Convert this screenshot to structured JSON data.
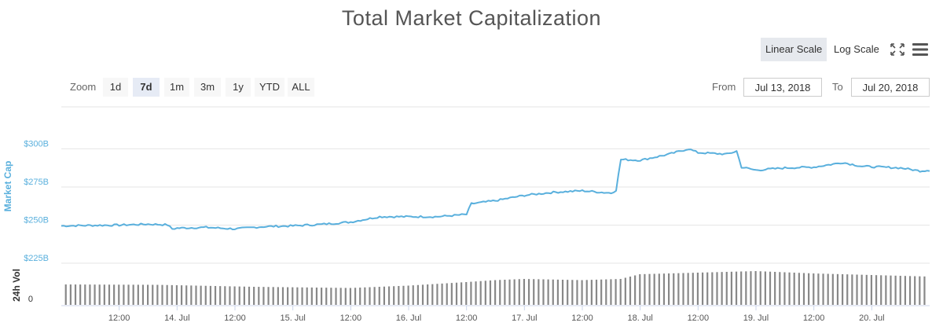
{
  "title": "Total Market Capitalization",
  "scale": {
    "linear_label": "Linear Scale",
    "log_label": "Log Scale",
    "active": "linear"
  },
  "icons": {
    "fullscreen": "fullscreen-icon",
    "menu": "hamburger-menu-icon"
  },
  "zoom": {
    "label": "Zoom",
    "options": [
      "1d",
      "7d",
      "1m",
      "3m",
      "1y",
      "YTD",
      "ALL"
    ],
    "active": "7d"
  },
  "range": {
    "from_label": "From",
    "from_value": "Jul 13, 2018",
    "to_label": "To",
    "to_value": "Jul 20, 2018"
  },
  "colors": {
    "line": "#5ab0dd",
    "volume": "#888888",
    "grid": "#e6e6e6",
    "axis_label": "#5ab0dd"
  },
  "chart_data": {
    "type": "line",
    "title": "Total Market Capitalization",
    "ylabel": "Market Cap",
    "y2label": "24h Vol",
    "y_ticks": [
      "$300B",
      "$275B",
      "$250B",
      "$225B"
    ],
    "y_tick_values": [
      300,
      275,
      250,
      225
    ],
    "ylim": [
      225,
      310
    ],
    "volume_tick": "0",
    "x_ticks": [
      "12:00",
      "14. Jul",
      "12:00",
      "15. Jul",
      "12:00",
      "16. Jul",
      "12:00",
      "17. Jul",
      "12:00",
      "18. Jul",
      "12:00",
      "19. Jul",
      "12:00",
      "20. Jul"
    ],
    "x_tick_hours": [
      12,
      24,
      36,
      48,
      60,
      72,
      84,
      96,
      108,
      120,
      132,
      144,
      156,
      168
    ],
    "x_range_hours": [
      0,
      180
    ],
    "x_unit": "hours after Jul 13, 2018 00:00",
    "series": [
      {
        "name": "Market Cap",
        "x": [
          0,
          6,
          12,
          18,
          22,
          23,
          24,
          30,
          36,
          42,
          48,
          54,
          60,
          66,
          72,
          78,
          84,
          85,
          90,
          96,
          102,
          108,
          114,
          115,
          116,
          120,
          126,
          130,
          132,
          138,
          140,
          141,
          144,
          150,
          156,
          162,
          166,
          170,
          174,
          178,
          180
        ],
        "y": [
          249.5,
          249.8,
          250,
          250.6,
          250.2,
          247.5,
          248,
          248.5,
          247.5,
          249,
          249.5,
          250.5,
          252,
          255.5,
          255.5,
          255.5,
          257,
          264,
          266,
          269.5,
          271.5,
          272.5,
          271,
          273,
          293,
          292.5,
          296.5,
          300,
          297.5,
          296.5,
          298.5,
          288,
          286,
          287.5,
          288,
          291,
          288.5,
          288,
          287.5,
          285.5,
          286
        ]
      },
      {
        "name": "24h Vol",
        "x": [
          0,
          20,
          40,
          60,
          72,
          84,
          90,
          96,
          108,
          116,
          120,
          132,
          144,
          156,
          168,
          180
        ],
        "y": [
          52,
          51,
          46,
          43,
          49,
          58,
          63,
          66,
          63,
          66,
          78,
          82,
          86,
          80,
          76,
          72
        ],
        "unit": "relative volume (0-100)"
      }
    ]
  }
}
